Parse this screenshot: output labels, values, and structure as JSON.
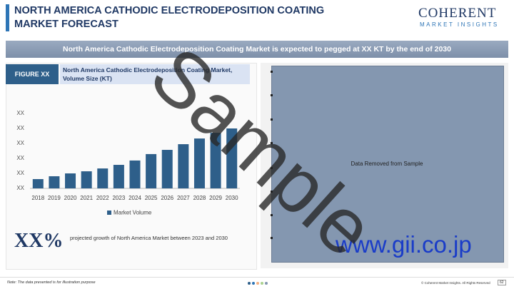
{
  "header": {
    "title": "NORTH AMERICA CATHODIC ELECTRODEPOSITION COATING MARKET FORECAST",
    "logo_main": "COHERENT",
    "logo_sub": "MARKET INSIGHTS"
  },
  "banner": "North America Cathodic Electrodeposition Coating Market is expected to pegged at XX KT by the end of 2030",
  "figure_label": "FIGURE XX",
  "chart_data": {
    "type": "bar",
    "title": "North America Cathodic Electrodeposition Coating Market, Volume Size (KT)",
    "categories": [
      "2018",
      "2019",
      "2020",
      "2021",
      "2022",
      "2023",
      "2024",
      "2025",
      "2026",
      "2027",
      "2028",
      "2029",
      "2030"
    ],
    "series": [
      {
        "name": "Market Volume",
        "color": "#2e5f8a",
        "values": [
          6.2,
          8.1,
          10,
          11.4,
          13.3,
          15.7,
          18.6,
          22.9,
          25.7,
          29.5,
          33.3,
          37.1,
          40
        ]
      }
    ],
    "ylim": [
      0,
      50
    ],
    "yticks": [
      {
        "value": 0,
        "label": "XX"
      },
      {
        "value": 10,
        "label": "XX"
      },
      {
        "value": 20,
        "label": "XX"
      },
      {
        "value": 30,
        "label": "XX"
      },
      {
        "value": 40,
        "label": "XX"
      },
      {
        "value": 50,
        "label": "XX"
      }
    ],
    "grid": false,
    "legend": "bottom"
  },
  "growth": {
    "value": "XX%",
    "text": "projected growth of North America Market between 2023 and 2030"
  },
  "removed_text": "Data Removed from Sample",
  "watermark": "Sample",
  "website": "www.gii.co.jp",
  "footer": {
    "note": "Note: The data presented is for illustration purpose",
    "copyright": "© Coherent Market Insights. All Rights Reserved",
    "page": "62"
  }
}
